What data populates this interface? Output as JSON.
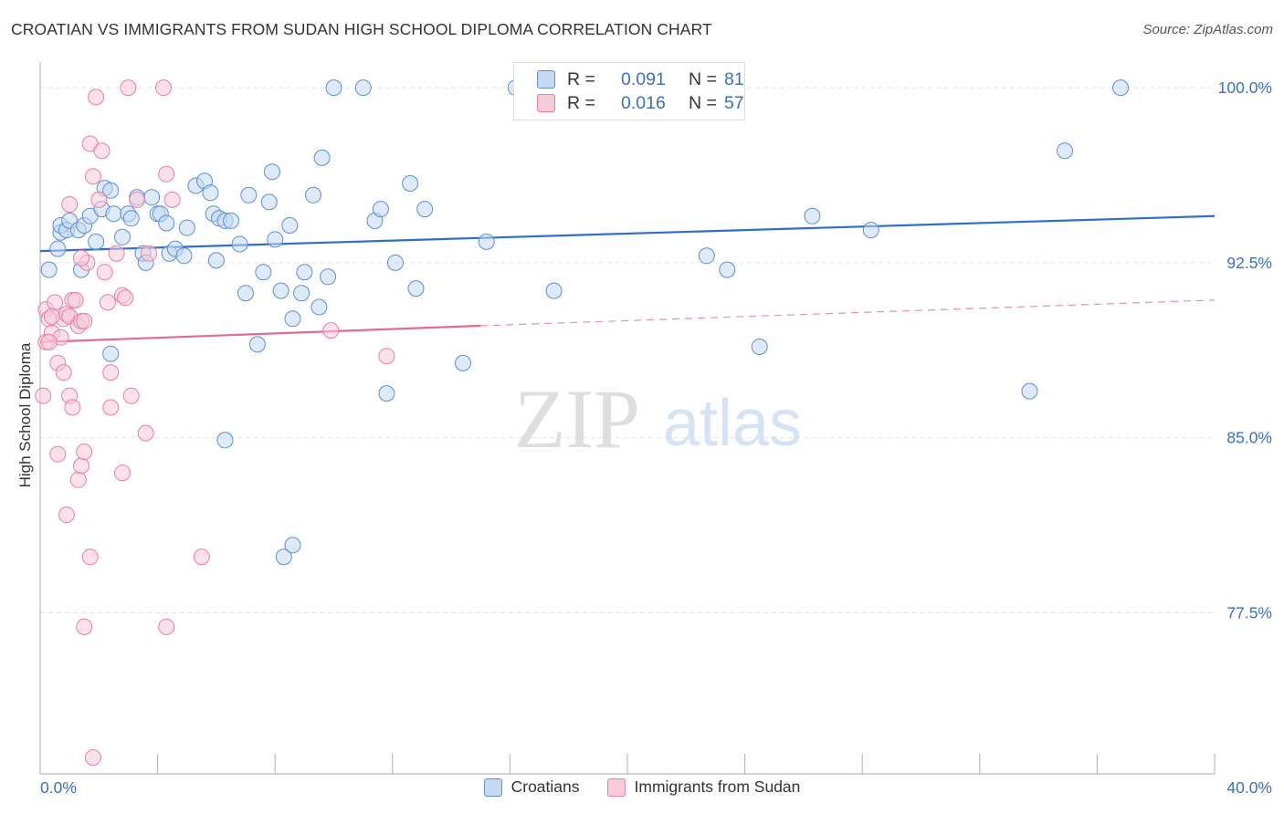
{
  "title": "CROATIAN VS IMMIGRANTS FROM SUDAN HIGH SCHOOL DIPLOMA CORRELATION CHART",
  "source": "Source: ZipAtlas.com",
  "watermark": {
    "zip": "ZIP",
    "atlas": "atlas"
  },
  "stats": [
    {
      "r_label": "R = ",
      "r_value": "0.091",
      "n_label": "N = ",
      "n_value": "81",
      "color": "#5b8fd6",
      "fill": "#c5d9f3"
    },
    {
      "r_label": "R = ",
      "r_value": "0.016",
      "n_label": "N = ",
      "n_value": "57",
      "color": "#e87fa0",
      "fill": "#f8cbd8"
    }
  ],
  "legend": [
    {
      "label": "Croatians",
      "color": "#5b8fd6",
      "fill": "#c5d9f3"
    },
    {
      "label": "Immigrants from Sudan",
      "color": "#e87fa0",
      "fill": "#f8cbd8"
    }
  ],
  "chart_data": {
    "type": "scatter",
    "title": "CROATIAN VS IMMIGRANTS FROM SUDAN HIGH SCHOOL DIPLOMA CORRELATION CHART",
    "xlabel": "",
    "ylabel": "High School Diploma",
    "xlim": [
      0,
      40
    ],
    "ylim": [
      70.6,
      101.1
    ],
    "x_tick_labels": [
      "0.0%",
      "40.0%"
    ],
    "y_ticks": [
      77.5,
      85.0,
      92.5,
      100.0
    ],
    "y_tick_labels": [
      "77.5%",
      "85.0%",
      "92.5%",
      "100.0%"
    ],
    "grid": true,
    "legend_position": "bottom-center",
    "series": [
      {
        "name": "Croatians",
        "color": "#5b8fd6",
        "fill": "#c5d9f3",
        "trend": {
          "x": [
            0.0,
            40.0
          ],
          "y": [
            93.0,
            94.5
          ],
          "style": "solid"
        },
        "points": [
          [
            0.3,
            92.2
          ],
          [
            0.6,
            93.1
          ],
          [
            0.7,
            93.8
          ],
          [
            0.7,
            94.1
          ],
          [
            0.9,
            93.9
          ],
          [
            1.0,
            94.3
          ],
          [
            1.3,
            93.9
          ],
          [
            1.4,
            92.2
          ],
          [
            1.5,
            94.1
          ],
          [
            1.7,
            94.5
          ],
          [
            1.9,
            93.4
          ],
          [
            2.1,
            94.8
          ],
          [
            2.2,
            95.7
          ],
          [
            2.4,
            95.6
          ],
          [
            2.5,
            94.6
          ],
          [
            2.8,
            93.6
          ],
          [
            3.0,
            94.6
          ],
          [
            3.1,
            94.4
          ],
          [
            3.3,
            95.3
          ],
          [
            3.5,
            92.9
          ],
          [
            3.6,
            92.5
          ],
          [
            3.8,
            95.3
          ],
          [
            4.0,
            94.6
          ],
          [
            4.1,
            94.6
          ],
          [
            4.3,
            94.2
          ],
          [
            4.4,
            92.9
          ],
          [
            4.6,
            93.1
          ],
          [
            4.9,
            92.8
          ],
          [
            5.0,
            94.0
          ],
          [
            5.3,
            95.8
          ],
          [
            5.6,
            96.0
          ],
          [
            5.8,
            95.5
          ],
          [
            5.9,
            94.6
          ],
          [
            6.0,
            92.6
          ],
          [
            6.1,
            94.4
          ],
          [
            6.3,
            94.3
          ],
          [
            6.5,
            94.3
          ],
          [
            6.8,
            93.3
          ],
          [
            7.0,
            91.2
          ],
          [
            7.1,
            95.4
          ],
          [
            7.4,
            89.0
          ],
          [
            7.6,
            92.1
          ],
          [
            7.8,
            95.1
          ],
          [
            7.9,
            96.4
          ],
          [
            8.0,
            93.5
          ],
          [
            8.2,
            91.3
          ],
          [
            8.5,
            94.1
          ],
          [
            8.6,
            90.1
          ],
          [
            8.9,
            91.2
          ],
          [
            9.0,
            92.1
          ],
          [
            9.3,
            95.4
          ],
          [
            9.5,
            90.6
          ],
          [
            9.6,
            97.0
          ],
          [
            9.8,
            91.9
          ],
          [
            10.0,
            100.0
          ],
          [
            11.0,
            100.0
          ],
          [
            11.4,
            94.3
          ],
          [
            11.6,
            94.8
          ],
          [
            11.8,
            86.9
          ],
          [
            12.1,
            92.5
          ],
          [
            12.6,
            95.9
          ],
          [
            12.8,
            91.4
          ],
          [
            13.1,
            94.8
          ],
          [
            14.4,
            88.2
          ],
          [
            15.2,
            93.4
          ],
          [
            16.5,
            100.0
          ],
          [
            17.5,
            91.3
          ],
          [
            22.0,
            100.0
          ],
          [
            22.7,
            92.8
          ],
          [
            23.4,
            92.2
          ],
          [
            24.5,
            88.9
          ],
          [
            26.3,
            94.5
          ],
          [
            28.3,
            93.9
          ],
          [
            33.7,
            87.0
          ],
          [
            34.9,
            97.3
          ],
          [
            36.8,
            100.0
          ],
          [
            2.4,
            88.6
          ],
          [
            6.3,
            84.9
          ],
          [
            8.3,
            79.9
          ],
          [
            8.6,
            80.4
          ],
          [
            16.2,
            100.0
          ]
        ]
      },
      {
        "name": "Immigrants from Sudan",
        "color": "#e87fa0",
        "fill": "#f8cbd8",
        "trend": {
          "x": [
            0.0,
            15.0,
            40.0
          ],
          "y": [
            89.1,
            89.8,
            90.9
          ],
          "style": "solid-then-dashed"
        },
        "points": [
          [
            0.1,
            86.8
          ],
          [
            0.2,
            89.1
          ],
          [
            0.2,
            90.5
          ],
          [
            0.3,
            90.1
          ],
          [
            0.4,
            89.5
          ],
          [
            0.5,
            90.8
          ],
          [
            0.6,
            88.2
          ],
          [
            0.7,
            89.3
          ],
          [
            0.8,
            90.1
          ],
          [
            0.9,
            90.3
          ],
          [
            1.0,
            90.2
          ],
          [
            1.1,
            90.9
          ],
          [
            1.2,
            90.9
          ],
          [
            1.3,
            89.8
          ],
          [
            1.4,
            90.0
          ],
          [
            1.5,
            90.0
          ],
          [
            1.6,
            92.5
          ],
          [
            1.7,
            97.6
          ],
          [
            1.8,
            96.2
          ],
          [
            1.9,
            99.6
          ],
          [
            2.0,
            95.2
          ],
          [
            2.1,
            97.3
          ],
          [
            2.2,
            92.1
          ],
          [
            2.3,
            90.8
          ],
          [
            2.4,
            86.3
          ],
          [
            2.6,
            92.9
          ],
          [
            2.8,
            91.1
          ],
          [
            2.9,
            91.0
          ],
          [
            3.0,
            100.0
          ],
          [
            3.1,
            86.8
          ],
          [
            3.3,
            95.2
          ],
          [
            3.6,
            85.2
          ],
          [
            3.7,
            92.9
          ],
          [
            4.2,
            100.0
          ],
          [
            4.3,
            96.3
          ],
          [
            4.5,
            95.2
          ],
          [
            1.0,
            86.8
          ],
          [
            0.8,
            87.8
          ],
          [
            0.6,
            84.3
          ],
          [
            1.1,
            86.3
          ],
          [
            1.3,
            83.2
          ],
          [
            1.4,
            83.8
          ],
          [
            1.5,
            84.4
          ],
          [
            0.9,
            81.7
          ],
          [
            1.7,
            79.9
          ],
          [
            2.8,
            83.5
          ],
          [
            5.5,
            79.9
          ],
          [
            1.5,
            76.9
          ],
          [
            4.3,
            76.9
          ],
          [
            1.8,
            71.3
          ],
          [
            9.9,
            89.6
          ],
          [
            11.8,
            88.5
          ],
          [
            1.4,
            92.7
          ],
          [
            0.4,
            90.2
          ],
          [
            0.3,
            89.1
          ],
          [
            2.4,
            87.8
          ],
          [
            1.0,
            95.0
          ]
        ]
      }
    ]
  }
}
